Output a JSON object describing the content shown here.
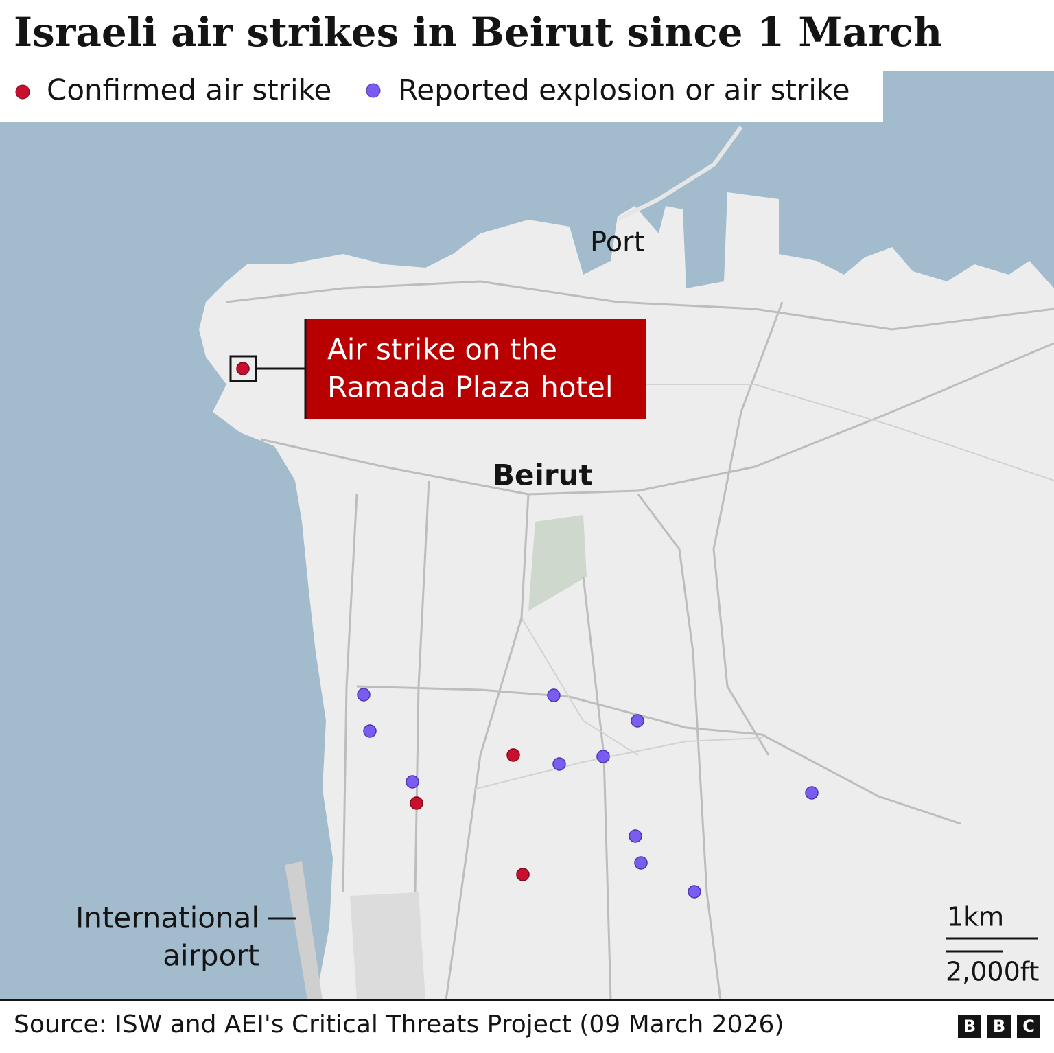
{
  "header": {
    "title": "Israeli air strikes in Beirut since 1 March"
  },
  "legend": [
    {
      "label": "Confirmed air strike",
      "color": "#c8102e"
    },
    {
      "label": "Reported explosion or air strike",
      "color": "#7b5cf0"
    }
  ],
  "annotation": {
    "lines": [
      "Air strike on the",
      "Ramada Plaza hotel"
    ]
  },
  "places": {
    "port": "Port",
    "city": "Beirut",
    "airport": [
      "International",
      "airport"
    ]
  },
  "scale": {
    "metric": "1km",
    "imperial": "2,000ft"
  },
  "footer": {
    "source": "Source: ISW and AEI's Critical Threats Project (09 March 2026)",
    "logo": [
      "B",
      "B",
      "C"
    ]
  }
}
